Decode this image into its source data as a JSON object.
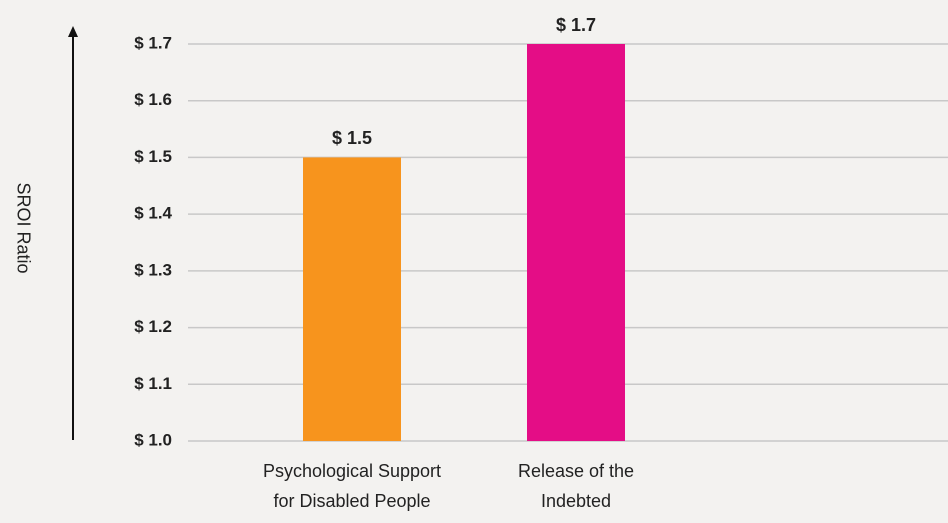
{
  "chart_data": {
    "type": "bar",
    "y_label": "SROI Ratio",
    "categories": [
      "Psychological Support\nfor Disabled People",
      "Release of the\nIndebted"
    ],
    "values": [
      1.5,
      1.7
    ],
    "value_labels": [
      "$ 1.5",
      "$ 1.7"
    ],
    "colors": [
      "#f7941d",
      "#e40d86"
    ],
    "ylim": [
      1.0,
      1.7
    ],
    "yticks": [
      {
        "value": 1.0,
        "label": "$ 1.0"
      },
      {
        "value": 1.1,
        "label": "$ 1.1"
      },
      {
        "value": 1.2,
        "label": "$ 1.2"
      },
      {
        "value": 1.3,
        "label": "$ 1.3"
      },
      {
        "value": 1.4,
        "label": "$ 1.4"
      },
      {
        "value": 1.5,
        "label": "$ 1.5"
      },
      {
        "value": 1.6,
        "label": "$ 1.6"
      },
      {
        "value": 1.7,
        "label": "$ 1.7"
      }
    ],
    "grid": true
  }
}
